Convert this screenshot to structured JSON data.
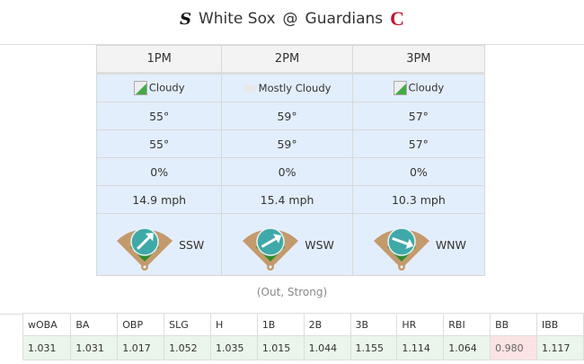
{
  "header": {
    "away_team": "White Sox",
    "separator": "@",
    "home_team": "Guardians",
    "away_logo": "SX",
    "home_logo": "C"
  },
  "weather": {
    "columns": [
      {
        "time": "1PM",
        "condition": "Cloudy",
        "condition_icon": "broken-image-icon",
        "temp": "55°",
        "feels_like": "55°",
        "precip": "0%",
        "wind_speed": "14.9 mph",
        "wind_dir": "SSW",
        "arrow_angle_deg": 45
      },
      {
        "time": "2PM",
        "condition": "Mostly Cloudy",
        "condition_icon": "cloud-icon",
        "temp": "59°",
        "feels_like": "59°",
        "precip": "0%",
        "wind_speed": "15.4 mph",
        "wind_dir": "WSW",
        "arrow_angle_deg": 60
      },
      {
        "time": "3PM",
        "condition": "Cloudy",
        "condition_icon": "broken-image-icon",
        "temp": "57°",
        "feels_like": "57°",
        "precip": "0%",
        "wind_speed": "10.3 mph",
        "wind_dir": "WNW",
        "arrow_angle_deg": 110
      }
    ]
  },
  "caption": "(Out, Strong)",
  "stats": {
    "headers": [
      "wOBA",
      "BA",
      "OBP",
      "SLG",
      "H",
      "1B",
      "2B",
      "3B",
      "HR",
      "RBI",
      "BB",
      "IBB"
    ],
    "values": [
      "1.031",
      "1.031",
      "1.017",
      "1.052",
      "1.035",
      "1.015",
      "1.044",
      "1.155",
      "1.114",
      "1.064",
      "0.980",
      "1.117"
    ]
  },
  "colors": {
    "positive": "#eaf6ea",
    "negative": "#fbe3e3",
    "weather_bg": "#e3eefc",
    "guardians_red": "#c8102e"
  }
}
